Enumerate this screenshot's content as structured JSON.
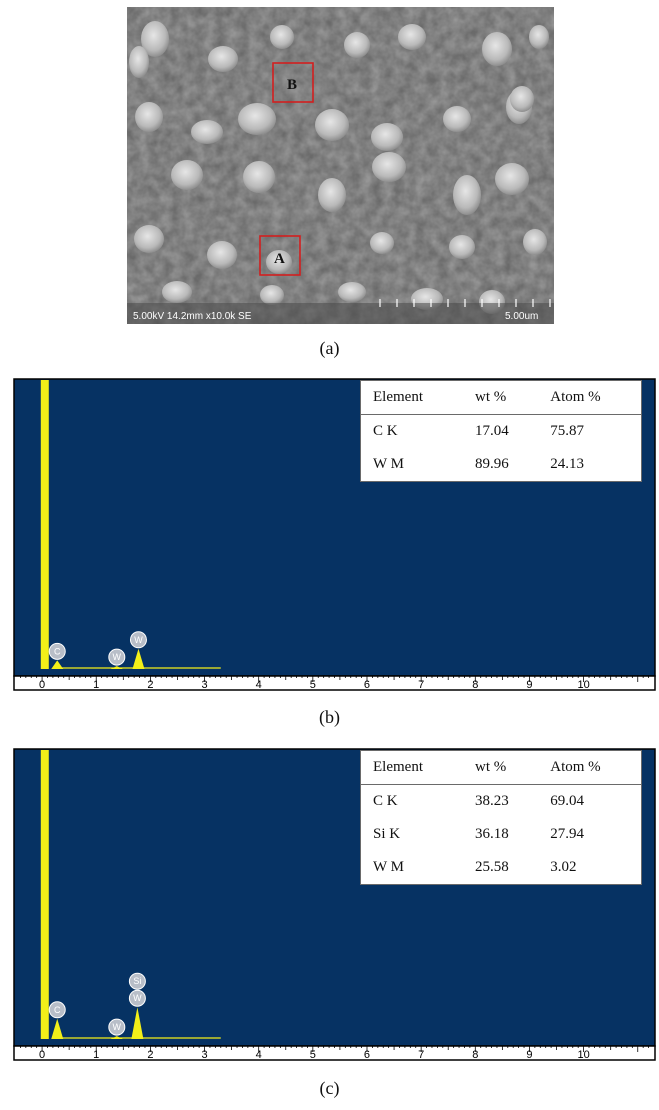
{
  "sem_image": {
    "info_text": "5.00kV 14.2mm x10.0k SE",
    "scale_text": "5.00um",
    "regions": [
      "A",
      "B"
    ]
  },
  "captions": {
    "a": "(a)",
    "b": "(b)",
    "c": "(c)"
  },
  "chart_data": [
    {
      "type": "bar",
      "panel": "(b)",
      "x_ticks": [
        "0",
        "1",
        "2",
        "3",
        "4",
        "5",
        "6",
        "7",
        "8",
        "9",
        "10"
      ],
      "xlim": [
        -0.5,
        11.3
      ],
      "colors": {
        "background": "#063263",
        "spectrum": "#f2ef19",
        "baseline": "#f2ef19"
      },
      "peaks": [
        {
          "element": "",
          "energy": 0.05,
          "relative_height": 1.0
        },
        {
          "element": "C",
          "energy": 0.28,
          "relative_height": 0.03
        },
        {
          "element": "W",
          "energy": 1.38,
          "relative_height": 0.01
        },
        {
          "element": "W",
          "energy": 1.78,
          "relative_height": 0.07
        }
      ],
      "table": {
        "columns": [
          "Element",
          "wt %",
          "Atom %"
        ],
        "rows": [
          [
            "C K",
            "17.04",
            "75.87"
          ],
          [
            "W M",
            "89.96",
            "24.13"
          ]
        ]
      }
    },
    {
      "type": "bar",
      "panel": "(c)",
      "x_ticks": [
        "0",
        "1",
        "2",
        "3",
        "4",
        "5",
        "6",
        "7",
        "8",
        "9",
        "10"
      ],
      "xlim": [
        -0.5,
        11.3
      ],
      "colors": {
        "background": "#063263",
        "spectrum": "#f2ef19",
        "baseline": "#f2ef19"
      },
      "peaks": [
        {
          "element": "",
          "energy": 0.05,
          "relative_height": 1.0
        },
        {
          "element": "C",
          "energy": 0.28,
          "relative_height": 0.07
        },
        {
          "element": "W",
          "energy": 1.38,
          "relative_height": 0.01
        },
        {
          "element": "Si W",
          "energy": 1.76,
          "relative_height": 0.11
        }
      ],
      "table": {
        "columns": [
          "Element",
          "wt %",
          "Atom %"
        ],
        "rows": [
          [
            "C K",
            "38.23",
            "69.04"
          ],
          [
            "Si K",
            "36.18",
            "27.94"
          ],
          [
            "W M",
            "25.58",
            "3.02"
          ]
        ]
      }
    }
  ]
}
